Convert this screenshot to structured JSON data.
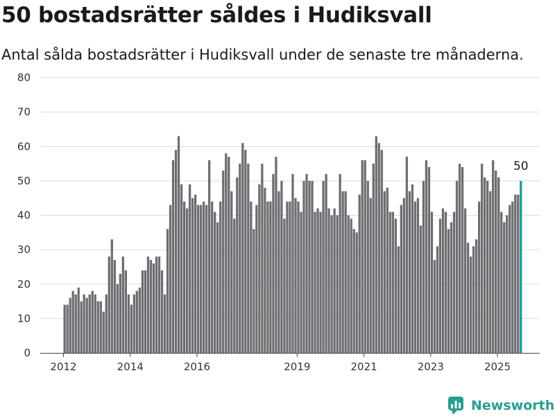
{
  "header": {
    "title": "50 bostadsrätter såldes i Hudiksvall",
    "subtitle": "Antal sålda bostadsrätter i Hudiksvall under de senaste tre månaderna."
  },
  "branding": {
    "logo_text": "Newsworthy",
    "logo_icon": "newsworthy-chart-icon"
  },
  "colors": {
    "bar": "#6e6d72",
    "highlight": "#1a9a94",
    "grid": "#dcdcdc",
    "brand": "#2a9d8f"
  },
  "chart_data": {
    "type": "bar",
    "title": "50 bostadsrätter såldes i Hudiksvall",
    "subtitle": "Antal sålda bostadsrätter i Hudiksvall under de senaste tre månaderna.",
    "xlabel": "",
    "ylabel": "",
    "ylim": [
      0,
      80
    ],
    "y_ticks": [
      0,
      10,
      20,
      30,
      40,
      50,
      60,
      70,
      80
    ],
    "x_ticks": [
      "2012",
      "2014",
      "2016",
      "2019",
      "2021",
      "2023",
      "2025"
    ],
    "grid": true,
    "start": "2012-01",
    "frequency": "monthly",
    "values": [
      14,
      14,
      16,
      18,
      17,
      19,
      15,
      17,
      16,
      17,
      18,
      17,
      15,
      15,
      12,
      17,
      28,
      33,
      27,
      20,
      23,
      28,
      24,
      17,
      14,
      17,
      18,
      19,
      24,
      24,
      28,
      27,
      26,
      28,
      28,
      24,
      17,
      36,
      43,
      56,
      59,
      63,
      49,
      44,
      42,
      49,
      45,
      46,
      43,
      43,
      44,
      43,
      56,
      44,
      41,
      38,
      44,
      53,
      58,
      57,
      47,
      39,
      51,
      55,
      61,
      59,
      55,
      44,
      36,
      43,
      49,
      55,
      48,
      44,
      44,
      52,
      57,
      47,
      50,
      39,
      44,
      44,
      52,
      45,
      44,
      41,
      50,
      52,
      50,
      50,
      41,
      42,
      41,
      50,
      52,
      42,
      40,
      42,
      40,
      52,
      47,
      47,
      40,
      39,
      36,
      35,
      46,
      56,
      56,
      50,
      45,
      55,
      63,
      61,
      59,
      47,
      48,
      41,
      41,
      39,
      31,
      43,
      45,
      57,
      47,
      49,
      44,
      45,
      37,
      50,
      56,
      54,
      41,
      27,
      31,
      39,
      42,
      41,
      36,
      38,
      41,
      50,
      55,
      54,
      42,
      32,
      28,
      31,
      33,
      44,
      55,
      51,
      50,
      47,
      56,
      53,
      51,
      41,
      38,
      40,
      43,
      44,
      46,
      46,
      50
    ],
    "highlight_last": true,
    "annotations": [
      {
        "text": "50"
      }
    ]
  }
}
